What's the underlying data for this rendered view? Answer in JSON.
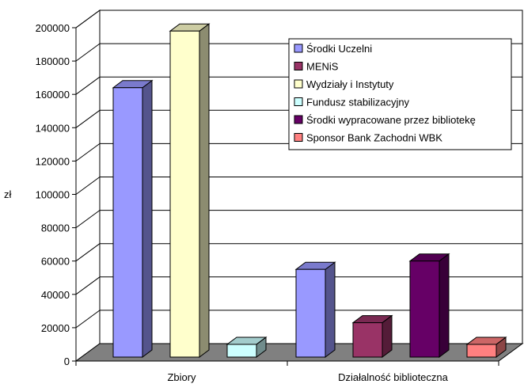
{
  "chart_data": {
    "type": "bar",
    "ylabel": "zł",
    "ylim": [
      0,
      200000
    ],
    "y_ticks": [
      "0",
      "20000",
      "40000",
      "60000",
      "80000",
      "100000",
      "120000",
      "140000",
      "160000",
      "180000",
      "200000"
    ],
    "grid": true,
    "legend_position": "top-right",
    "categories": [
      "Zbiory",
      "Działalność biblioteczna"
    ],
    "series": [
      {
        "name": "Środki Uczelni",
        "color": "#9999ff",
        "values": [
          164000,
          55000
        ]
      },
      {
        "name": "MENiS",
        "color": "#993366",
        "values": [
          0,
          23000
        ]
      },
      {
        "name": "Wydziały i Instytuty",
        "color": "#ffffcc",
        "values": [
          198000,
          0
        ]
      },
      {
        "name": "Fundusz stabilizacyjny",
        "color": "#ccffff",
        "values": [
          10000,
          0
        ]
      },
      {
        "name": "Środki wypracowane przez bibliotekę",
        "color": "#660066",
        "values": [
          0,
          60000
        ]
      },
      {
        "name": "Sponsor Bank Zachodni WBK",
        "color": "#ff8080",
        "values": [
          0,
          10000
        ]
      }
    ]
  }
}
